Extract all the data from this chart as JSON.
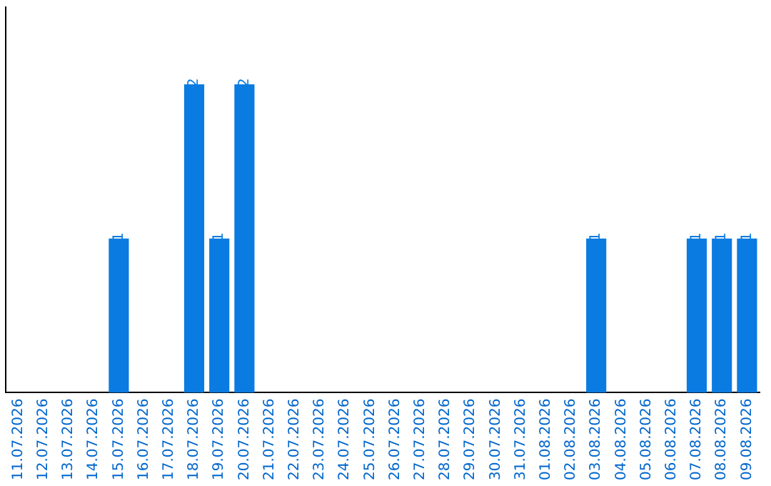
{
  "chart_data": {
    "type": "bar",
    "categories": [
      "11.07.2026",
      "12.07.2026",
      "13.07.2026",
      "14.07.2026",
      "15.07.2026",
      "16.07.2026",
      "17.07.2026",
      "18.07.2026",
      "19.07.2026",
      "20.07.2026",
      "21.07.2026",
      "22.07.2026",
      "23.07.2026",
      "24.07.2026",
      "25.07.2026",
      "26.07.2026",
      "27.07.2026",
      "28.07.2026",
      "29.07.2026",
      "30.07.2026",
      "31.07.2026",
      "01.08.2026",
      "02.08.2026",
      "03.08.2026",
      "04.08.2026",
      "05.08.2026",
      "06.08.2026",
      "07.08.2026",
      "08.08.2026",
      "09.08.2026"
    ],
    "values": [
      0,
      0,
      0,
      0,
      1,
      0,
      0,
      2,
      1,
      2,
      0,
      0,
      0,
      0,
      0,
      0,
      0,
      0,
      0,
      0,
      0,
      0,
      0,
      1,
      0,
      0,
      0,
      1,
      1,
      1
    ],
    "value_labels": [
      null,
      null,
      null,
      null,
      "1",
      null,
      null,
      "2",
      "1",
      "2",
      null,
      null,
      null,
      null,
      null,
      null,
      null,
      null,
      null,
      null,
      null,
      null,
      null,
      "1",
      null,
      null,
      null,
      "1",
      "1",
      "1"
    ],
    "color": "#0a7be0",
    "grid": false,
    "legend": false,
    "tick_labels": "x"
  }
}
